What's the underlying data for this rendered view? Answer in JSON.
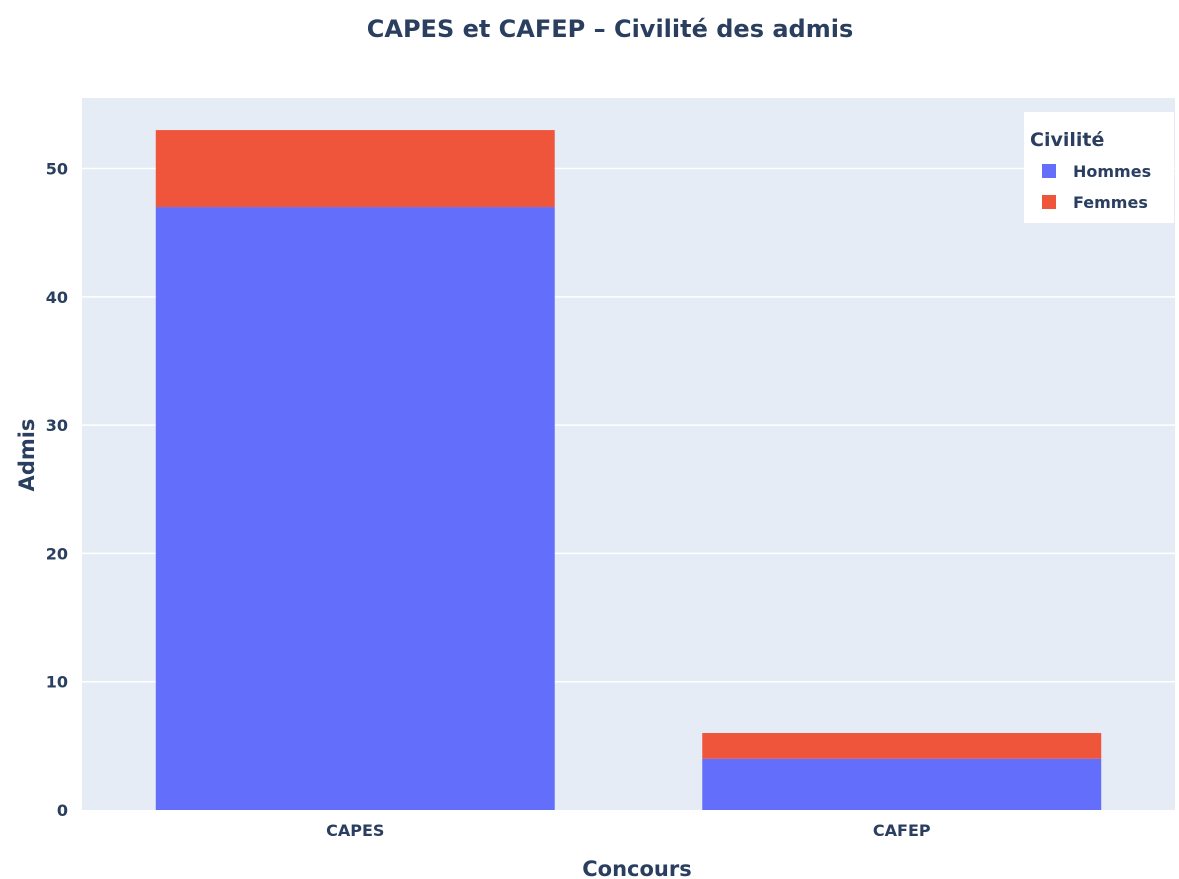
{
  "chart_data": {
    "type": "bar",
    "barmode": "stack",
    "title": "CAPES et CAFEP – Civilité des admis",
    "xlabel": "Concours",
    "ylabel": "Admis",
    "categories": [
      "CAPES",
      "CAFEP"
    ],
    "ylim": [
      0,
      55.5
    ],
    "yticks": [
      0,
      10,
      20,
      30,
      40,
      50
    ],
    "grid": true,
    "legend": {
      "title": "Civilité",
      "placement": "top-right"
    },
    "series": [
      {
        "name": "Hommes",
        "values": [
          47,
          4
        ],
        "color": "#636efa"
      },
      {
        "name": "Femmes",
        "values": [
          6,
          2
        ],
        "color": "#ef553b"
      }
    ],
    "colors": {
      "plot_background": "#e5ecf6",
      "gridline": "#ffffff",
      "text": "#2a3f5f"
    }
  }
}
